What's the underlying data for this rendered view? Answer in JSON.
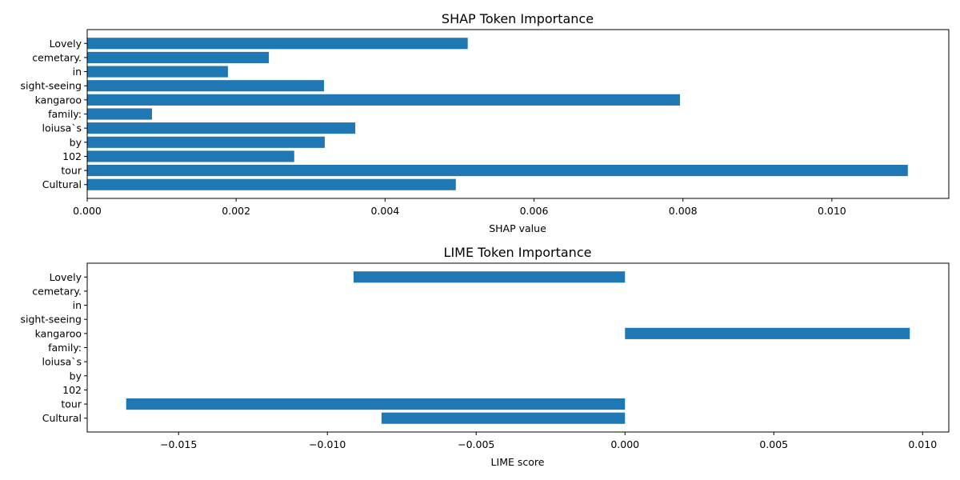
{
  "chart_data": [
    {
      "type": "bar",
      "orientation": "horizontal",
      "title": "SHAP Token Importance",
      "xlabel": "SHAP value",
      "ylabel": "",
      "categories": [
        "Lovely",
        "cemetary.",
        "in",
        "sight-seeing",
        "kangaroo",
        "family:",
        "loiusa`s",
        "by",
        "102",
        "tour",
        "Cultural"
      ],
      "values": [
        0.00511,
        0.00244,
        0.00189,
        0.00318,
        0.00796,
        0.00087,
        0.0036,
        0.00319,
        0.00278,
        0.01102,
        0.00495
      ],
      "xlim": [
        0,
        0.01157
      ],
      "xticks": [
        0,
        0.002,
        0.004,
        0.006,
        0.008,
        0.01
      ],
      "xtick_labels": [
        "0.000",
        "0.002",
        "0.004",
        "0.006",
        "0.008",
        "0.010"
      ],
      "grid": false,
      "bar_color": "#1f77b4"
    },
    {
      "type": "bar",
      "orientation": "horizontal",
      "title": "LIME Token Importance",
      "xlabel": "LIME score",
      "ylabel": "",
      "categories": [
        "Lovely",
        "cemetary.",
        "in",
        "sight-seeing",
        "kangaroo",
        "family:",
        "loiusa`s",
        "by",
        "102",
        "tour",
        "Cultural"
      ],
      "values": [
        -0.00912,
        0,
        0,
        0,
        0.00957,
        0,
        0,
        0,
        0,
        -0.01676,
        -0.00818
      ],
      "xlim": [
        -0.01807,
        0.01088
      ],
      "xticks": [
        -0.015,
        -0.01,
        -0.005,
        0,
        0.005,
        0.01
      ],
      "xtick_labels": [
        "−0.015",
        "−0.010",
        "−0.005",
        "0.000",
        "0.005",
        "0.010"
      ],
      "grid": false,
      "bar_color": "#1f77b4"
    }
  ]
}
